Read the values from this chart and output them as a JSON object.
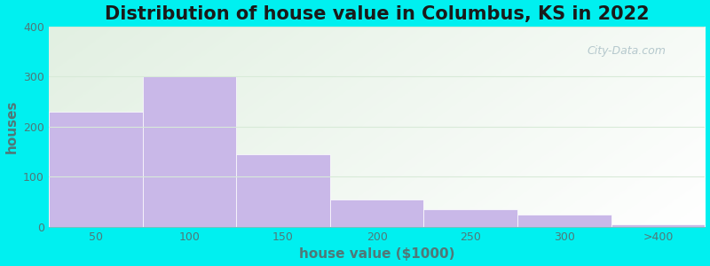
{
  "title": "Distribution of house value in Columbus, KS in 2022",
  "xlabel": "house value ($1000)",
  "ylabel": "houses",
  "bar_labels": [
    "50",
    "100",
    "150",
    "200",
    "250",
    "300",
    ">400"
  ],
  "bar_values": [
    230,
    300,
    145,
    55,
    35,
    25,
    5
  ],
  "bar_color": "#c9b8e8",
  "bar_edgecolor": "#c9b8e8",
  "ylim": [
    0,
    400
  ],
  "yticks": [
    0,
    100,
    200,
    300,
    400
  ],
  "background_color": "#00f0f0",
  "plot_bg_top_left": "#e2f0e2",
  "plot_bg_bottom_right": "#f8fdf8",
  "plot_bg_white": "#ffffff",
  "title_fontsize": 15,
  "axis_label_fontsize": 11,
  "tick_fontsize": 9,
  "tick_color": "#507878",
  "label_color": "#507878",
  "watermark": "City-Data.com",
  "grid_color": "#d8ead8"
}
